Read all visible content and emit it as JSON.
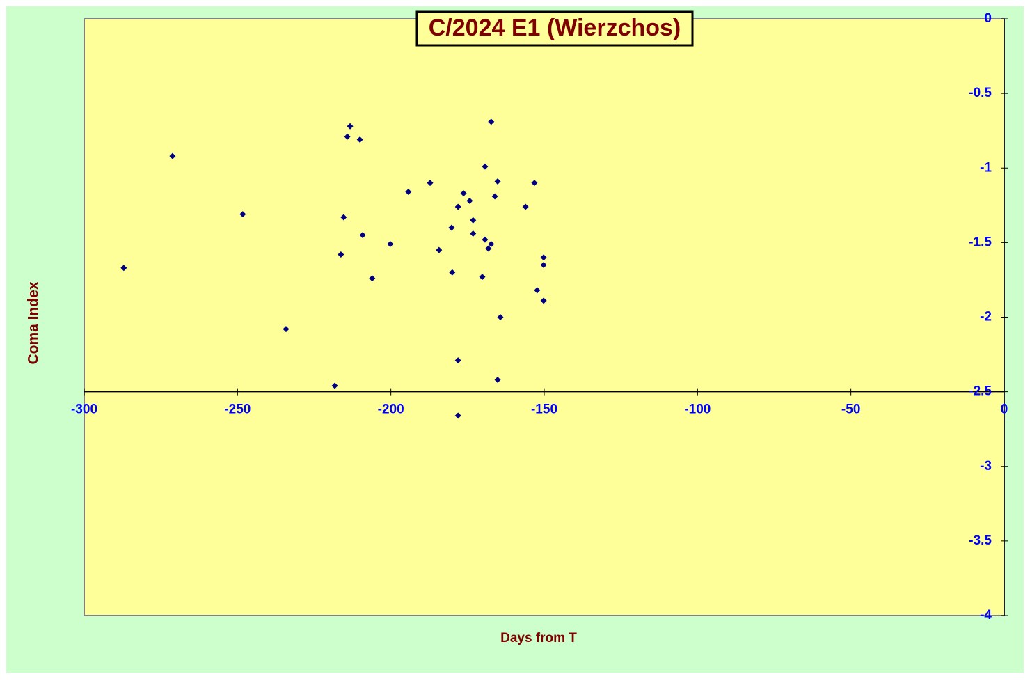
{
  "chart_data": {
    "type": "scatter",
    "title": "C/2024 E1 (Wierzchos)",
    "x_label": "Days from T",
    "y_label": "Coma Index",
    "xlim": [
      -300,
      0
    ],
    "xticks": [
      -300,
      -250,
      -200,
      -150,
      -100,
      -50,
      0
    ],
    "ylim": [
      -4,
      0
    ],
    "yticks": [
      0,
      -0.5,
      -1,
      -1.5,
      -2,
      -2.5,
      -3,
      -3.5,
      -4
    ],
    "x_axis_crosses": -2.5,
    "series": [
      {
        "color": "#000080",
        "x": [
          -287.1,
          -271.2,
          -248.3,
          -234.2,
          -218.3,
          -216.3,
          -215.4,
          -214.2,
          -213.3,
          -210.1,
          -209.2,
          -206.1,
          -200.2,
          -194.3,
          -187.2,
          -184.3,
          -180.2,
          -180.0,
          -178.1,
          -178.1,
          -178.1,
          -176.3,
          -174.3,
          -173.2,
          -173.2,
          -170.2,
          -169.3,
          -169.3,
          -168.2,
          -167.3,
          -167.3,
          -166.1,
          -165.2,
          -165.2,
          -164.3,
          -156.1,
          -153.2,
          -152.3,
          -150.2,
          -150.2,
          -150.2
        ],
        "values": [
          -1.67,
          -0.92,
          -1.31,
          -2.08,
          -2.46,
          -1.58,
          -1.33,
          -0.79,
          -0.72,
          -0.81,
          -1.45,
          -1.74,
          -1.51,
          -1.16,
          -1.1,
          -1.55,
          -1.4,
          -1.7,
          -2.29,
          -1.26,
          -2.66,
          -1.17,
          -1.22,
          -1.35,
          -1.44,
          -1.73,
          -0.99,
          -1.48,
          -1.54,
          -1.51,
          -0.69,
          -1.19,
          -1.09,
          -2.42,
          -2.0,
          -1.26,
          -1.1,
          -1.82,
          -1.6,
          -1.65,
          -1.89
        ]
      }
    ]
  }
}
